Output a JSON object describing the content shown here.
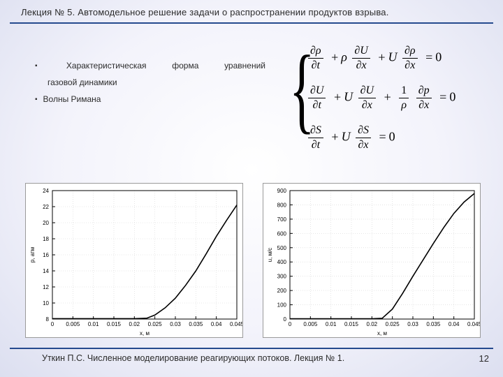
{
  "page": {
    "title": "Лекция № 5. Автомодельное решение задачи о распространении продуктов взрыва.",
    "footer": "Уткин П.С. Численное моделирование реагирующих потоков. Лекция № 1.",
    "number": "12",
    "rule_color": "#254a8e"
  },
  "bullets": {
    "item1_line1": "Характеристическая форма уравнений",
    "item1_line2": "газовой динамики",
    "item2": "Волны Римана"
  },
  "equations": {
    "eq1": {
      "terms": [
        "∂ρ/∂t",
        "ρ ∂U/∂x",
        "U ∂ρ/∂x"
      ],
      "rhs": "0"
    },
    "eq2": {
      "terms": [
        "∂U/∂t",
        "U ∂U/∂x",
        "(1/ρ) ∂p/∂x"
      ],
      "rhs": "0"
    },
    "eq3": {
      "terms": [
        "∂S/∂t",
        "U ∂S/∂x"
      ],
      "rhs": "0"
    }
  },
  "chart_left": {
    "type": "line",
    "xlabel": "x, м",
    "ylabel": "p, атм",
    "xlim": [
      0,
      0.045
    ],
    "ylim": [
      8,
      24
    ],
    "xticks": [
      0,
      0.005,
      0.01,
      0.015,
      0.02,
      0.025,
      0.03,
      0.035,
      0.04,
      0.045
    ],
    "yticks": [
      8,
      10,
      12,
      14,
      16,
      18,
      20,
      22,
      24
    ],
    "series_color": "#000000",
    "grid_color": "#d6d6d6",
    "bg": "#ffffff",
    "line_width": 1.6,
    "data": {
      "x": [
        0,
        0.005,
        0.01,
        0.015,
        0.02,
        0.023,
        0.025,
        0.0275,
        0.03,
        0.0325,
        0.035,
        0.0375,
        0.04,
        0.0425,
        0.045
      ],
      "y": [
        8.05,
        8.05,
        8.05,
        8.05,
        8.05,
        8.1,
        8.5,
        9.4,
        10.6,
        12.2,
        14.0,
        16.1,
        18.3,
        20.3,
        22.2
      ]
    }
  },
  "chart_right": {
    "type": "line",
    "xlabel": "x, м",
    "ylabel": "u, м/с",
    "xlim": [
      0,
      0.045
    ],
    "ylim": [
      0,
      900
    ],
    "xticks": [
      0,
      0.005,
      0.01,
      0.015,
      0.02,
      0.025,
      0.03,
      0.035,
      0.04,
      0.045
    ],
    "yticks": [
      0,
      100,
      200,
      300,
      400,
      500,
      600,
      700,
      800,
      900
    ],
    "series_color": "#000000",
    "grid_color": "#d6d6d6",
    "bg": "#ffffff",
    "line_width": 1.6,
    "data": {
      "x": [
        0,
        0.005,
        0.01,
        0.015,
        0.02,
        0.0225,
        0.025,
        0.0275,
        0.03,
        0.0325,
        0.035,
        0.0375,
        0.04,
        0.0425,
        0.045
      ],
      "y": [
        2,
        2,
        2,
        2,
        2,
        5,
        70,
        180,
        300,
        415,
        530,
        640,
        740,
        820,
        880
      ]
    }
  }
}
